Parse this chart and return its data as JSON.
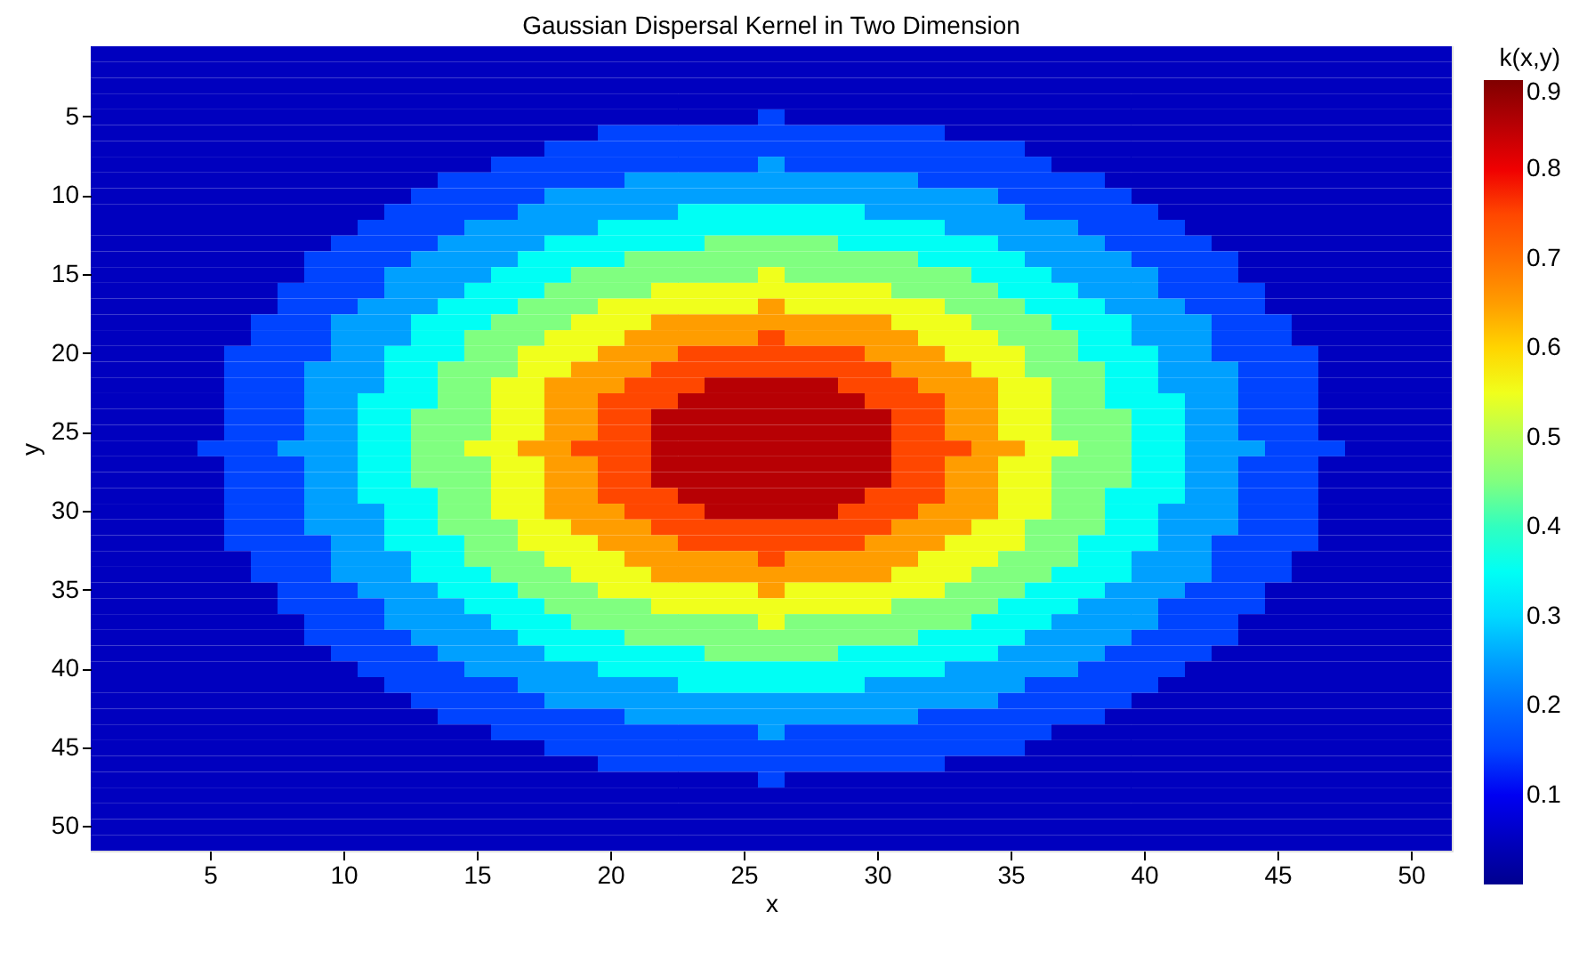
{
  "chart_data": {
    "type": "heatmap",
    "title": "Gaussian Dispersal Kernel in Two Dimension",
    "xlabel": "x",
    "ylabel": "y",
    "clabel": "k(x,y)",
    "categories": [
      null,
      null,
      null,
      null,
      "5",
      null,
      null,
      null,
      null,
      "10",
      null,
      null,
      null,
      null,
      "15",
      null,
      null,
      null,
      null,
      "20",
      null,
      null,
      null,
      null,
      "25",
      null,
      null,
      null,
      null,
      "30",
      null,
      null,
      null,
      null,
      "35",
      null,
      null,
      null,
      null,
      "40",
      null,
      null,
      null,
      null,
      "45",
      null,
      null,
      null,
      null,
      "50",
      null
    ],
    "y_categories": [
      null,
      null,
      null,
      null,
      "5",
      null,
      null,
      null,
      null,
      "10",
      null,
      null,
      null,
      null,
      "15",
      null,
      null,
      null,
      null,
      "20",
      null,
      null,
      null,
      null,
      "25",
      null,
      null,
      null,
      null,
      "30",
      null,
      null,
      null,
      null,
      "35",
      null,
      null,
      null,
      null,
      "40",
      null,
      null,
      null,
      null,
      "45",
      null,
      null,
      null,
      null,
      "50",
      null
    ],
    "clim": [
      0,
      0.9
    ],
    "cticks": [
      0.1,
      0.2,
      0.3,
      0.4,
      0.5,
      0.6,
      0.7,
      0.8,
      0.9
    ],
    "cells": [
      [
        0.05,
        0.05,
        0.05,
        0.05,
        0.05,
        0.05,
        0.05,
        0.05,
        0.05,
        0.05,
        0.05,
        0.05,
        0.05,
        0.05,
        0.05,
        0.05,
        0.05,
        0.05,
        0.05,
        0.05,
        0.05,
        0.05,
        0.05,
        0.05,
        0.05,
        0.05,
        0.05,
        0.05,
        0.05,
        0.05,
        0.05,
        0.05,
        0.05,
        0.05,
        0.05,
        0.05,
        0.05,
        0.05,
        0.05,
        0.05,
        0.05,
        0.05,
        0.05,
        0.05,
        0.05,
        0.05,
        0.05,
        0.05,
        0.05,
        0.05,
        0.05
      ],
      [
        0.05,
        0.05,
        0.05,
        0.05,
        0.05,
        0.05,
        0.05,
        0.05,
        0.05,
        0.05,
        0.05,
        0.05,
        0.05,
        0.05,
        0.05,
        0.05,
        0.05,
        0.05,
        0.05,
        0.05,
        0.05,
        0.05,
        0.05,
        0.05,
        0.05,
        0.05,
        0.05,
        0.05,
        0.05,
        0.05,
        0.05,
        0.05,
        0.05,
        0.05,
        0.05,
        0.05,
        0.05,
        0.05,
        0.05,
        0.05,
        0.05,
        0.05,
        0.05,
        0.05,
        0.05,
        0.05,
        0.05,
        0.05,
        0.05,
        0.05,
        0.05
      ],
      [
        0.05,
        0.05,
        0.05,
        0.05,
        0.05,
        0.05,
        0.05,
        0.05,
        0.05,
        0.05,
        0.05,
        0.05,
        0.05,
        0.05,
        0.05,
        0.05,
        0.05,
        0.05,
        0.05,
        0.05,
        0.05,
        0.05,
        0.05,
        0.05,
        0.05,
        0.05,
        0.05,
        0.05,
        0.05,
        0.05,
        0.05,
        0.05,
        0.05,
        0.05,
        0.05,
        0.05,
        0.05,
        0.05,
        0.05,
        0.05,
        0.05,
        0.05,
        0.05,
        0.05,
        0.05,
        0.05,
        0.05,
        0.05,
        0.05,
        0.05,
        0.05
      ],
      [
        0.05,
        0.05,
        0.05,
        0.05,
        0.05,
        0.05,
        0.05,
        0.05,
        0.05,
        0.05,
        0.05,
        0.05,
        0.05,
        0.05,
        0.05,
        0.05,
        0.05,
        0.05,
        0.05,
        0.05,
        0.05,
        0.05,
        0.05,
        0.05,
        0.05,
        0.05,
        0.05,
        0.05,
        0.05,
        0.05,
        0.05,
        0.05,
        0.05,
        0.05,
        0.05,
        0.05,
        0.05,
        0.05,
        0.05,
        0.05,
        0.05,
        0.05,
        0.05,
        0.05,
        0.05,
        0.05,
        0.05,
        0.05,
        0.05,
        0.05,
        0.05
      ],
      [
        0.05,
        0.05,
        0.05,
        0.05,
        0.05,
        0.05,
        0.05,
        0.05,
        0.05,
        0.05,
        0.05,
        0.05,
        0.05,
        0.05,
        0.05,
        0.05,
        0.05,
        0.05,
        0.05,
        0.05,
        0.05,
        0.05,
        0.05,
        0.05,
        0.05,
        0.15,
        0.05,
        0.05,
        0.05,
        0.05,
        0.05,
        0.05,
        0.05,
        0.05,
        0.05,
        0.05,
        0.05,
        0.05,
        0.05,
        0.05,
        0.05,
        0.05,
        0.05,
        0.05,
        0.05,
        0.05,
        0.05,
        0.05,
        0.05,
        0.05,
        0.05
      ],
      [
        0.05,
        0.05,
        0.05,
        0.05,
        0.05,
        0.05,
        0.05,
        0.05,
        0.05,
        0.05,
        0.05,
        0.05,
        0.05,
        0.05,
        0.05,
        0.05,
        0.05,
        0.05,
        0.05,
        0.15,
        0.15,
        0.15,
        0.15,
        0.15,
        0.15,
        0.15,
        0.15,
        0.15,
        0.15,
        0.15,
        0.15,
        0.15,
        0.05,
        0.05,
        0.05,
        0.05,
        0.05,
        0.05,
        0.05,
        0.05,
        0.05,
        0.05,
        0.05,
        0.05,
        0.05,
        0.05,
        0.05,
        0.05,
        0.05,
        0.05,
        0.05
      ],
      [
        0.05,
        0.05,
        0.05,
        0.05,
        0.05,
        0.05,
        0.05,
        0.05,
        0.05,
        0.05,
        0.05,
        0.05,
        0.05,
        0.05,
        0.05,
        0.05,
        0.05,
        0.15,
        0.15,
        0.15,
        0.15,
        0.15,
        0.15,
        0.15,
        0.15,
        0.15,
        0.15,
        0.15,
        0.15,
        0.15,
        0.15,
        0.15,
        0.15,
        0.15,
        0.15,
        0.05,
        0.05,
        0.05,
        0.05,
        0.05,
        0.05,
        0.05,
        0.05,
        0.05,
        0.05,
        0.05,
        0.05,
        0.05,
        0.05,
        0.05,
        0.05
      ],
      [
        0.05,
        0.05,
        0.05,
        0.05,
        0.05,
        0.05,
        0.05,
        0.05,
        0.05,
        0.05,
        0.05,
        0.05,
        0.05,
        0.05,
        0.05,
        0.15,
        0.15,
        0.15,
        0.15,
        0.15,
        0.15,
        0.15,
        0.15,
        0.15,
        0.15,
        0.25,
        0.15,
        0.15,
        0.15,
        0.15,
        0.15,
        0.15,
        0.15,
        0.15,
        0.15,
        0.15,
        0.05,
        0.05,
        0.05,
        0.05,
        0.05,
        0.05,
        0.05,
        0.05,
        0.05,
        0.05,
        0.05,
        0.05,
        0.05,
        0.05,
        0.05
      ],
      [
        0.05,
        0.05,
        0.05,
        0.05,
        0.05,
        0.05,
        0.05,
        0.05,
        0.05,
        0.05,
        0.05,
        0.05,
        0.05,
        0.15,
        0.15,
        0.15,
        0.15,
        0.15,
        0.15,
        0.15,
        0.25,
        0.25,
        0.25,
        0.25,
        0.25,
        0.25,
        0.25,
        0.25,
        0.25,
        0.25,
        0.25,
        0.15,
        0.15,
        0.15,
        0.15,
        0.15,
        0.15,
        0.15,
        0.05,
        0.05,
        0.05,
        0.05,
        0.05,
        0.05,
        0.05,
        0.05,
        0.05,
        0.05,
        0.05,
        0.05,
        0.05
      ],
      [
        0.05,
        0.05,
        0.05,
        0.05,
        0.05,
        0.05,
        0.05,
        0.05,
        0.05,
        0.05,
        0.05,
        0.05,
        0.15,
        0.15,
        0.15,
        0.15,
        0.15,
        0.25,
        0.25,
        0.25,
        0.25,
        0.25,
        0.25,
        0.25,
        0.25,
        0.25,
        0.25,
        0.25,
        0.25,
        0.25,
        0.25,
        0.25,
        0.25,
        0.25,
        0.15,
        0.15,
        0.15,
        0.15,
        0.15,
        0.05,
        0.05,
        0.05,
        0.05,
        0.05,
        0.05,
        0.05,
        0.05,
        0.05,
        0.05,
        0.05,
        0.05
      ],
      [
        0.05,
        0.05,
        0.05,
        0.05,
        0.05,
        0.05,
        0.05,
        0.05,
        0.05,
        0.05,
        0.05,
        0.15,
        0.15,
        0.15,
        0.15,
        0.15,
        0.25,
        0.25,
        0.25,
        0.25,
        0.25,
        0.25,
        0.35,
        0.35,
        0.35,
        0.35,
        0.35,
        0.35,
        0.35,
        0.25,
        0.25,
        0.25,
        0.25,
        0.25,
        0.25,
        0.15,
        0.15,
        0.15,
        0.15,
        0.15,
        0.05,
        0.05,
        0.05,
        0.05,
        0.05,
        0.05,
        0.05,
        0.05,
        0.05,
        0.05,
        0.05
      ],
      [
        0.05,
        0.05,
        0.05,
        0.05,
        0.05,
        0.05,
        0.05,
        0.05,
        0.05,
        0.05,
        0.15,
        0.15,
        0.15,
        0.15,
        0.25,
        0.25,
        0.25,
        0.25,
        0.25,
        0.35,
        0.35,
        0.35,
        0.35,
        0.35,
        0.35,
        0.35,
        0.35,
        0.35,
        0.35,
        0.35,
        0.35,
        0.35,
        0.25,
        0.25,
        0.25,
        0.25,
        0.25,
        0.15,
        0.15,
        0.15,
        0.15,
        0.05,
        0.05,
        0.05,
        0.05,
        0.05,
        0.05,
        0.05,
        0.05,
        0.05,
        0.05
      ],
      [
        0.05,
        0.05,
        0.05,
        0.05,
        0.05,
        0.05,
        0.05,
        0.05,
        0.05,
        0.15,
        0.15,
        0.15,
        0.15,
        0.25,
        0.25,
        0.25,
        0.25,
        0.35,
        0.35,
        0.35,
        0.35,
        0.35,
        0.35,
        0.45,
        0.45,
        0.45,
        0.45,
        0.45,
        0.35,
        0.35,
        0.35,
        0.35,
        0.35,
        0.35,
        0.25,
        0.25,
        0.25,
        0.25,
        0.15,
        0.15,
        0.15,
        0.15,
        0.05,
        0.05,
        0.05,
        0.05,
        0.05,
        0.05,
        0.05,
        0.05,
        0.05
      ],
      [
        0.05,
        0.05,
        0.05,
        0.05,
        0.05,
        0.05,
        0.05,
        0.05,
        0.15,
        0.15,
        0.15,
        0.15,
        0.25,
        0.25,
        0.25,
        0.25,
        0.35,
        0.35,
        0.35,
        0.35,
        0.45,
        0.45,
        0.45,
        0.45,
        0.45,
        0.45,
        0.45,
        0.45,
        0.45,
        0.45,
        0.45,
        0.35,
        0.35,
        0.35,
        0.35,
        0.25,
        0.25,
        0.25,
        0.25,
        0.15,
        0.15,
        0.15,
        0.15,
        0.05,
        0.05,
        0.05,
        0.05,
        0.05,
        0.05,
        0.05,
        0.05
      ],
      [
        0.05,
        0.05,
        0.05,
        0.05,
        0.05,
        0.05,
        0.05,
        0.05,
        0.15,
        0.15,
        0.15,
        0.25,
        0.25,
        0.25,
        0.25,
        0.35,
        0.35,
        0.35,
        0.45,
        0.45,
        0.45,
        0.45,
        0.45,
        0.45,
        0.45,
        0.55,
        0.45,
        0.45,
        0.45,
        0.45,
        0.45,
        0.45,
        0.45,
        0.35,
        0.35,
        0.35,
        0.25,
        0.25,
        0.25,
        0.25,
        0.15,
        0.15,
        0.15,
        0.05,
        0.05,
        0.05,
        0.05,
        0.05,
        0.05,
        0.05,
        0.05
      ],
      [
        0.05,
        0.05,
        0.05,
        0.05,
        0.05,
        0.05,
        0.05,
        0.15,
        0.15,
        0.15,
        0.15,
        0.25,
        0.25,
        0.25,
        0.35,
        0.35,
        0.35,
        0.45,
        0.45,
        0.45,
        0.45,
        0.55,
        0.55,
        0.55,
        0.55,
        0.55,
        0.55,
        0.55,
        0.55,
        0.55,
        0.45,
        0.45,
        0.45,
        0.45,
        0.35,
        0.35,
        0.35,
        0.25,
        0.25,
        0.25,
        0.15,
        0.15,
        0.15,
        0.15,
        0.05,
        0.05,
        0.05,
        0.05,
        0.05,
        0.05,
        0.05
      ],
      [
        0.05,
        0.05,
        0.05,
        0.05,
        0.05,
        0.05,
        0.05,
        0.15,
        0.15,
        0.15,
        0.25,
        0.25,
        0.25,
        0.35,
        0.35,
        0.35,
        0.45,
        0.45,
        0.45,
        0.55,
        0.55,
        0.55,
        0.55,
        0.55,
        0.55,
        0.65,
        0.55,
        0.55,
        0.55,
        0.55,
        0.55,
        0.55,
        0.45,
        0.45,
        0.45,
        0.35,
        0.35,
        0.35,
        0.25,
        0.25,
        0.25,
        0.15,
        0.15,
        0.15,
        0.05,
        0.05,
        0.05,
        0.05,
        0.05,
        0.05,
        0.05
      ],
      [
        0.05,
        0.05,
        0.05,
        0.05,
        0.05,
        0.05,
        0.15,
        0.15,
        0.15,
        0.25,
        0.25,
        0.25,
        0.35,
        0.35,
        0.35,
        0.45,
        0.45,
        0.45,
        0.55,
        0.55,
        0.55,
        0.65,
        0.65,
        0.65,
        0.65,
        0.65,
        0.65,
        0.65,
        0.65,
        0.65,
        0.55,
        0.55,
        0.55,
        0.45,
        0.45,
        0.45,
        0.35,
        0.35,
        0.35,
        0.25,
        0.25,
        0.25,
        0.15,
        0.15,
        0.15,
        0.05,
        0.05,
        0.05,
        0.05,
        0.05,
        0.05
      ],
      [
        0.05,
        0.05,
        0.05,
        0.05,
        0.05,
        0.05,
        0.15,
        0.15,
        0.15,
        0.25,
        0.25,
        0.25,
        0.35,
        0.35,
        0.45,
        0.45,
        0.45,
        0.55,
        0.55,
        0.55,
        0.65,
        0.65,
        0.65,
        0.65,
        0.65,
        0.75,
        0.65,
        0.65,
        0.65,
        0.65,
        0.65,
        0.55,
        0.55,
        0.55,
        0.45,
        0.45,
        0.45,
        0.35,
        0.35,
        0.25,
        0.25,
        0.25,
        0.15,
        0.15,
        0.15,
        0.05,
        0.05,
        0.05,
        0.05,
        0.05,
        0.05
      ],
      [
        0.05,
        0.05,
        0.05,
        0.05,
        0.05,
        0.15,
        0.15,
        0.15,
        0.15,
        0.25,
        0.25,
        0.35,
        0.35,
        0.35,
        0.45,
        0.45,
        0.55,
        0.55,
        0.55,
        0.65,
        0.65,
        0.65,
        0.75,
        0.75,
        0.75,
        0.75,
        0.75,
        0.75,
        0.75,
        0.65,
        0.65,
        0.65,
        0.55,
        0.55,
        0.55,
        0.45,
        0.45,
        0.35,
        0.35,
        0.35,
        0.25,
        0.25,
        0.15,
        0.15,
        0.15,
        0.15,
        0.05,
        0.05,
        0.05,
        0.05,
        0.05
      ],
      [
        0.05,
        0.05,
        0.05,
        0.05,
        0.05,
        0.15,
        0.15,
        0.15,
        0.25,
        0.25,
        0.25,
        0.35,
        0.35,
        0.45,
        0.45,
        0.45,
        0.55,
        0.55,
        0.65,
        0.65,
        0.65,
        0.75,
        0.75,
        0.75,
        0.75,
        0.75,
        0.75,
        0.75,
        0.75,
        0.75,
        0.65,
        0.65,
        0.65,
        0.55,
        0.55,
        0.45,
        0.45,
        0.45,
        0.35,
        0.35,
        0.25,
        0.25,
        0.25,
        0.15,
        0.15,
        0.15,
        0.05,
        0.05,
        0.05,
        0.05,
        0.05
      ],
      [
        0.05,
        0.05,
        0.05,
        0.05,
        0.05,
        0.15,
        0.15,
        0.15,
        0.25,
        0.25,
        0.25,
        0.35,
        0.35,
        0.45,
        0.45,
        0.55,
        0.55,
        0.65,
        0.65,
        0.65,
        0.75,
        0.75,
        0.75,
        0.85,
        0.85,
        0.85,
        0.85,
        0.85,
        0.75,
        0.75,
        0.75,
        0.65,
        0.65,
        0.65,
        0.55,
        0.55,
        0.45,
        0.45,
        0.35,
        0.35,
        0.25,
        0.25,
        0.25,
        0.15,
        0.15,
        0.15,
        0.05,
        0.05,
        0.05,
        0.05,
        0.05
      ],
      [
        0.05,
        0.05,
        0.05,
        0.05,
        0.05,
        0.15,
        0.15,
        0.15,
        0.25,
        0.25,
        0.35,
        0.35,
        0.35,
        0.45,
        0.45,
        0.55,
        0.55,
        0.65,
        0.65,
        0.75,
        0.75,
        0.75,
        0.85,
        0.85,
        0.85,
        0.85,
        0.85,
        0.85,
        0.85,
        0.75,
        0.75,
        0.75,
        0.65,
        0.65,
        0.55,
        0.55,
        0.45,
        0.45,
        0.35,
        0.35,
        0.35,
        0.25,
        0.25,
        0.15,
        0.15,
        0.15,
        0.05,
        0.05,
        0.05,
        0.05,
        0.05
      ],
      [
        0.05,
        0.05,
        0.05,
        0.05,
        0.05,
        0.15,
        0.15,
        0.15,
        0.25,
        0.25,
        0.35,
        0.35,
        0.45,
        0.45,
        0.45,
        0.55,
        0.55,
        0.65,
        0.65,
        0.75,
        0.75,
        0.85,
        0.85,
        0.85,
        0.85,
        0.85,
        0.85,
        0.85,
        0.85,
        0.85,
        0.75,
        0.75,
        0.65,
        0.65,
        0.55,
        0.55,
        0.45,
        0.45,
        0.45,
        0.35,
        0.35,
        0.25,
        0.25,
        0.15,
        0.15,
        0.15,
        0.05,
        0.05,
        0.05,
        0.05,
        0.05
      ],
      [
        0.05,
        0.05,
        0.05,
        0.05,
        0.05,
        0.15,
        0.15,
        0.15,
        0.25,
        0.25,
        0.35,
        0.35,
        0.45,
        0.45,
        0.45,
        0.55,
        0.55,
        0.65,
        0.65,
        0.75,
        0.75,
        0.85,
        0.85,
        0.85,
        0.85,
        0.85,
        0.85,
        0.85,
        0.85,
        0.85,
        0.75,
        0.75,
        0.65,
        0.65,
        0.55,
        0.55,
        0.45,
        0.45,
        0.45,
        0.35,
        0.35,
        0.25,
        0.25,
        0.15,
        0.15,
        0.15,
        0.05,
        0.05,
        0.05,
        0.05,
        0.05
      ],
      [
        0.05,
        0.05,
        0.05,
        0.05,
        0.15,
        0.15,
        0.15,
        0.25,
        0.25,
        0.25,
        0.35,
        0.35,
        0.45,
        0.45,
        0.55,
        0.55,
        0.65,
        0.65,
        0.75,
        0.75,
        0.75,
        0.85,
        0.85,
        0.85,
        0.85,
        0.85,
        0.85,
        0.85,
        0.85,
        0.85,
        0.75,
        0.75,
        0.75,
        0.65,
        0.65,
        0.55,
        0.55,
        0.45,
        0.45,
        0.35,
        0.35,
        0.25,
        0.25,
        0.25,
        0.15,
        0.15,
        0.15,
        0.05,
        0.05,
        0.05,
        0.05
      ],
      [
        0.05,
        0.05,
        0.05,
        0.05,
        0.05,
        0.15,
        0.15,
        0.15,
        0.25,
        0.25,
        0.35,
        0.35,
        0.45,
        0.45,
        0.45,
        0.55,
        0.55,
        0.65,
        0.65,
        0.75,
        0.75,
        0.85,
        0.85,
        0.85,
        0.85,
        0.85,
        0.85,
        0.85,
        0.85,
        0.85,
        0.75,
        0.75,
        0.65,
        0.65,
        0.55,
        0.55,
        0.45,
        0.45,
        0.45,
        0.35,
        0.35,
        0.25,
        0.25,
        0.15,
        0.15,
        0.15,
        0.05,
        0.05,
        0.05,
        0.05,
        0.05
      ],
      [
        0.05,
        0.05,
        0.05,
        0.05,
        0.05,
        0.15,
        0.15,
        0.15,
        0.25,
        0.25,
        0.35,
        0.35,
        0.45,
        0.45,
        0.45,
        0.55,
        0.55,
        0.65,
        0.65,
        0.75,
        0.75,
        0.85,
        0.85,
        0.85,
        0.85,
        0.85,
        0.85,
        0.85,
        0.85,
        0.85,
        0.75,
        0.75,
        0.65,
        0.65,
        0.55,
        0.55,
        0.45,
        0.45,
        0.45,
        0.35,
        0.35,
        0.25,
        0.25,
        0.15,
        0.15,
        0.15,
        0.05,
        0.05,
        0.05,
        0.05,
        0.05
      ],
      [
        0.05,
        0.05,
        0.05,
        0.05,
        0.05,
        0.15,
        0.15,
        0.15,
        0.25,
        0.25,
        0.35,
        0.35,
        0.35,
        0.45,
        0.45,
        0.55,
        0.55,
        0.65,
        0.65,
        0.75,
        0.75,
        0.75,
        0.85,
        0.85,
        0.85,
        0.85,
        0.85,
        0.85,
        0.85,
        0.75,
        0.75,
        0.75,
        0.65,
        0.65,
        0.55,
        0.55,
        0.45,
        0.45,
        0.35,
        0.35,
        0.35,
        0.25,
        0.25,
        0.15,
        0.15,
        0.15,
        0.05,
        0.05,
        0.05,
        0.05,
        0.05
      ],
      [
        0.05,
        0.05,
        0.05,
        0.05,
        0.05,
        0.15,
        0.15,
        0.15,
        0.25,
        0.25,
        0.25,
        0.35,
        0.35,
        0.45,
        0.45,
        0.55,
        0.55,
        0.65,
        0.65,
        0.65,
        0.75,
        0.75,
        0.75,
        0.85,
        0.85,
        0.85,
        0.85,
        0.85,
        0.75,
        0.75,
        0.75,
        0.65,
        0.65,
        0.65,
        0.55,
        0.55,
        0.45,
        0.45,
        0.35,
        0.35,
        0.25,
        0.25,
        0.25,
        0.15,
        0.15,
        0.15,
        0.05,
        0.05,
        0.05,
        0.05,
        0.05
      ],
      [
        0.05,
        0.05,
        0.05,
        0.05,
        0.05,
        0.15,
        0.15,
        0.15,
        0.25,
        0.25,
        0.25,
        0.35,
        0.35,
        0.45,
        0.45,
        0.45,
        0.55,
        0.55,
        0.65,
        0.65,
        0.65,
        0.75,
        0.75,
        0.75,
        0.75,
        0.75,
        0.75,
        0.75,
        0.75,
        0.75,
        0.65,
        0.65,
        0.65,
        0.55,
        0.55,
        0.45,
        0.45,
        0.45,
        0.35,
        0.35,
        0.25,
        0.25,
        0.25,
        0.15,
        0.15,
        0.15,
        0.05,
        0.05,
        0.05,
        0.05,
        0.05
      ],
      [
        0.05,
        0.05,
        0.05,
        0.05,
        0.05,
        0.15,
        0.15,
        0.15,
        0.15,
        0.25,
        0.25,
        0.35,
        0.35,
        0.35,
        0.45,
        0.45,
        0.55,
        0.55,
        0.55,
        0.65,
        0.65,
        0.65,
        0.75,
        0.75,
        0.75,
        0.75,
        0.75,
        0.75,
        0.75,
        0.65,
        0.65,
        0.65,
        0.55,
        0.55,
        0.55,
        0.45,
        0.45,
        0.35,
        0.35,
        0.35,
        0.25,
        0.25,
        0.15,
        0.15,
        0.15,
        0.15,
        0.05,
        0.05,
        0.05,
        0.05,
        0.05
      ],
      [
        0.05,
        0.05,
        0.05,
        0.05,
        0.05,
        0.05,
        0.15,
        0.15,
        0.15,
        0.25,
        0.25,
        0.25,
        0.35,
        0.35,
        0.45,
        0.45,
        0.45,
        0.55,
        0.55,
        0.55,
        0.65,
        0.65,
        0.65,
        0.65,
        0.65,
        0.75,
        0.65,
        0.65,
        0.65,
        0.65,
        0.65,
        0.55,
        0.55,
        0.55,
        0.45,
        0.45,
        0.45,
        0.35,
        0.35,
        0.25,
        0.25,
        0.25,
        0.15,
        0.15,
        0.15,
        0.05,
        0.05,
        0.05,
        0.05,
        0.05,
        0.05
      ],
      [
        0.05,
        0.05,
        0.05,
        0.05,
        0.05,
        0.05,
        0.15,
        0.15,
        0.15,
        0.25,
        0.25,
        0.25,
        0.35,
        0.35,
        0.35,
        0.45,
        0.45,
        0.45,
        0.55,
        0.55,
        0.55,
        0.65,
        0.65,
        0.65,
        0.65,
        0.65,
        0.65,
        0.65,
        0.65,
        0.65,
        0.55,
        0.55,
        0.55,
        0.45,
        0.45,
        0.45,
        0.35,
        0.35,
        0.35,
        0.25,
        0.25,
        0.25,
        0.15,
        0.15,
        0.15,
        0.05,
        0.05,
        0.05,
        0.05,
        0.05,
        0.05
      ],
      [
        0.05,
        0.05,
        0.05,
        0.05,
        0.05,
        0.05,
        0.05,
        0.15,
        0.15,
        0.15,
        0.25,
        0.25,
        0.25,
        0.35,
        0.35,
        0.35,
        0.45,
        0.45,
        0.45,
        0.55,
        0.55,
        0.55,
        0.55,
        0.55,
        0.55,
        0.65,
        0.55,
        0.55,
        0.55,
        0.55,
        0.55,
        0.55,
        0.45,
        0.45,
        0.45,
        0.35,
        0.35,
        0.35,
        0.25,
        0.25,
        0.25,
        0.15,
        0.15,
        0.15,
        0.05,
        0.05,
        0.05,
        0.05,
        0.05,
        0.05,
        0.05
      ],
      [
        0.05,
        0.05,
        0.05,
        0.05,
        0.05,
        0.05,
        0.05,
        0.15,
        0.15,
        0.15,
        0.15,
        0.25,
        0.25,
        0.25,
        0.35,
        0.35,
        0.35,
        0.45,
        0.45,
        0.45,
        0.45,
        0.55,
        0.55,
        0.55,
        0.55,
        0.55,
        0.55,
        0.55,
        0.55,
        0.55,
        0.45,
        0.45,
        0.45,
        0.45,
        0.35,
        0.35,
        0.35,
        0.25,
        0.25,
        0.25,
        0.15,
        0.15,
        0.15,
        0.15,
        0.05,
        0.05,
        0.05,
        0.05,
        0.05,
        0.05,
        0.05
      ],
      [
        0.05,
        0.05,
        0.05,
        0.05,
        0.05,
        0.05,
        0.05,
        0.05,
        0.15,
        0.15,
        0.15,
        0.25,
        0.25,
        0.25,
        0.25,
        0.35,
        0.35,
        0.35,
        0.45,
        0.45,
        0.45,
        0.45,
        0.45,
        0.45,
        0.45,
        0.55,
        0.45,
        0.45,
        0.45,
        0.45,
        0.45,
        0.45,
        0.45,
        0.35,
        0.35,
        0.35,
        0.25,
        0.25,
        0.25,
        0.25,
        0.15,
        0.15,
        0.15,
        0.05,
        0.05,
        0.05,
        0.05,
        0.05,
        0.05,
        0.05,
        0.05
      ],
      [
        0.05,
        0.05,
        0.05,
        0.05,
        0.05,
        0.05,
        0.05,
        0.05,
        0.15,
        0.15,
        0.15,
        0.15,
        0.25,
        0.25,
        0.25,
        0.25,
        0.35,
        0.35,
        0.35,
        0.35,
        0.45,
        0.45,
        0.45,
        0.45,
        0.45,
        0.45,
        0.45,
        0.45,
        0.45,
        0.45,
        0.45,
        0.35,
        0.35,
        0.35,
        0.35,
        0.25,
        0.25,
        0.25,
        0.25,
        0.15,
        0.15,
        0.15,
        0.15,
        0.05,
        0.05,
        0.05,
        0.05,
        0.05,
        0.05,
        0.05,
        0.05
      ],
      [
        0.05,
        0.05,
        0.05,
        0.05,
        0.05,
        0.05,
        0.05,
        0.05,
        0.05,
        0.15,
        0.15,
        0.15,
        0.15,
        0.25,
        0.25,
        0.25,
        0.25,
        0.35,
        0.35,
        0.35,
        0.35,
        0.35,
        0.35,
        0.45,
        0.45,
        0.45,
        0.45,
        0.45,
        0.35,
        0.35,
        0.35,
        0.35,
        0.35,
        0.35,
        0.25,
        0.25,
        0.25,
        0.25,
        0.15,
        0.15,
        0.15,
        0.15,
        0.05,
        0.05,
        0.05,
        0.05,
        0.05,
        0.05,
        0.05,
        0.05,
        0.05
      ],
      [
        0.05,
        0.05,
        0.05,
        0.05,
        0.05,
        0.05,
        0.05,
        0.05,
        0.05,
        0.05,
        0.15,
        0.15,
        0.15,
        0.15,
        0.25,
        0.25,
        0.25,
        0.25,
        0.25,
        0.35,
        0.35,
        0.35,
        0.35,
        0.35,
        0.35,
        0.35,
        0.35,
        0.35,
        0.35,
        0.35,
        0.35,
        0.35,
        0.25,
        0.25,
        0.25,
        0.25,
        0.25,
        0.15,
        0.15,
        0.15,
        0.15,
        0.05,
        0.05,
        0.05,
        0.05,
        0.05,
        0.05,
        0.05,
        0.05,
        0.05,
        0.05
      ],
      [
        0.05,
        0.05,
        0.05,
        0.05,
        0.05,
        0.05,
        0.05,
        0.05,
        0.05,
        0.05,
        0.05,
        0.15,
        0.15,
        0.15,
        0.15,
        0.15,
        0.25,
        0.25,
        0.25,
        0.25,
        0.25,
        0.25,
        0.35,
        0.35,
        0.35,
        0.35,
        0.35,
        0.35,
        0.35,
        0.25,
        0.25,
        0.25,
        0.25,
        0.25,
        0.25,
        0.15,
        0.15,
        0.15,
        0.15,
        0.15,
        0.05,
        0.05,
        0.05,
        0.05,
        0.05,
        0.05,
        0.05,
        0.05,
        0.05,
        0.05,
        0.05
      ],
      [
        0.05,
        0.05,
        0.05,
        0.05,
        0.05,
        0.05,
        0.05,
        0.05,
        0.05,
        0.05,
        0.05,
        0.05,
        0.15,
        0.15,
        0.15,
        0.15,
        0.15,
        0.25,
        0.25,
        0.25,
        0.25,
        0.25,
        0.25,
        0.25,
        0.25,
        0.25,
        0.25,
        0.25,
        0.25,
        0.25,
        0.25,
        0.25,
        0.25,
        0.25,
        0.15,
        0.15,
        0.15,
        0.15,
        0.15,
        0.05,
        0.05,
        0.05,
        0.05,
        0.05,
        0.05,
        0.05,
        0.05,
        0.05,
        0.05,
        0.05,
        0.05
      ],
      [
        0.05,
        0.05,
        0.05,
        0.05,
        0.05,
        0.05,
        0.05,
        0.05,
        0.05,
        0.05,
        0.05,
        0.05,
        0.05,
        0.15,
        0.15,
        0.15,
        0.15,
        0.15,
        0.15,
        0.15,
        0.25,
        0.25,
        0.25,
        0.25,
        0.25,
        0.25,
        0.25,
        0.25,
        0.25,
        0.25,
        0.25,
        0.15,
        0.15,
        0.15,
        0.15,
        0.15,
        0.15,
        0.15,
        0.05,
        0.05,
        0.05,
        0.05,
        0.05,
        0.05,
        0.05,
        0.05,
        0.05,
        0.05,
        0.05,
        0.05,
        0.05
      ],
      [
        0.05,
        0.05,
        0.05,
        0.05,
        0.05,
        0.05,
        0.05,
        0.05,
        0.05,
        0.05,
        0.05,
        0.05,
        0.05,
        0.05,
        0.05,
        0.15,
        0.15,
        0.15,
        0.15,
        0.15,
        0.15,
        0.15,
        0.15,
        0.15,
        0.15,
        0.25,
        0.15,
        0.15,
        0.15,
        0.15,
        0.15,
        0.15,
        0.15,
        0.15,
        0.15,
        0.15,
        0.05,
        0.05,
        0.05,
        0.05,
        0.05,
        0.05,
        0.05,
        0.05,
        0.05,
        0.05,
        0.05,
        0.05,
        0.05,
        0.05,
        0.05
      ],
      [
        0.05,
        0.05,
        0.05,
        0.05,
        0.05,
        0.05,
        0.05,
        0.05,
        0.05,
        0.05,
        0.05,
        0.05,
        0.05,
        0.05,
        0.05,
        0.05,
        0.05,
        0.15,
        0.15,
        0.15,
        0.15,
        0.15,
        0.15,
        0.15,
        0.15,
        0.15,
        0.15,
        0.15,
        0.15,
        0.15,
        0.15,
        0.15,
        0.15,
        0.15,
        0.15,
        0.05,
        0.05,
        0.05,
        0.05,
        0.05,
        0.05,
        0.05,
        0.05,
        0.05,
        0.05,
        0.05,
        0.05,
        0.05,
        0.05,
        0.05,
        0.05
      ],
      [
        0.05,
        0.05,
        0.05,
        0.05,
        0.05,
        0.05,
        0.05,
        0.05,
        0.05,
        0.05,
        0.05,
        0.05,
        0.05,
        0.05,
        0.05,
        0.05,
        0.05,
        0.05,
        0.05,
        0.15,
        0.15,
        0.15,
        0.15,
        0.15,
        0.15,
        0.15,
        0.15,
        0.15,
        0.15,
        0.15,
        0.15,
        0.15,
        0.05,
        0.05,
        0.05,
        0.05,
        0.05,
        0.05,
        0.05,
        0.05,
        0.05,
        0.05,
        0.05,
        0.05,
        0.05,
        0.05,
        0.05,
        0.05,
        0.05,
        0.05,
        0.05
      ],
      [
        0.05,
        0.05,
        0.05,
        0.05,
        0.05,
        0.05,
        0.05,
        0.05,
        0.05,
        0.05,
        0.05,
        0.05,
        0.05,
        0.05,
        0.05,
        0.05,
        0.05,
        0.05,
        0.05,
        0.05,
        0.05,
        0.05,
        0.05,
        0.05,
        0.05,
        0.15,
        0.05,
        0.05,
        0.05,
        0.05,
        0.05,
        0.05,
        0.05,
        0.05,
        0.05,
        0.05,
        0.05,
        0.05,
        0.05,
        0.05,
        0.05,
        0.05,
        0.05,
        0.05,
        0.05,
        0.05,
        0.05,
        0.05,
        0.05,
        0.05,
        0.05
      ],
      [
        0.05,
        0.05,
        0.05,
        0.05,
        0.05,
        0.05,
        0.05,
        0.05,
        0.05,
        0.05,
        0.05,
        0.05,
        0.05,
        0.05,
        0.05,
        0.05,
        0.05,
        0.05,
        0.05,
        0.05,
        0.05,
        0.05,
        0.05,
        0.05,
        0.05,
        0.05,
        0.05,
        0.05,
        0.05,
        0.05,
        0.05,
        0.05,
        0.05,
        0.05,
        0.05,
        0.05,
        0.05,
        0.05,
        0.05,
        0.05,
        0.05,
        0.05,
        0.05,
        0.05,
        0.05,
        0.05,
        0.05,
        0.05,
        0.05,
        0.05,
        0.05
      ],
      [
        0.05,
        0.05,
        0.05,
        0.05,
        0.05,
        0.05,
        0.05,
        0.05,
        0.05,
        0.05,
        0.05,
        0.05,
        0.05,
        0.05,
        0.05,
        0.05,
        0.05,
        0.05,
        0.05,
        0.05,
        0.05,
        0.05,
        0.05,
        0.05,
        0.05,
        0.05,
        0.05,
        0.05,
        0.05,
        0.05,
        0.05,
        0.05,
        0.05,
        0.05,
        0.05,
        0.05,
        0.05,
        0.05,
        0.05,
        0.05,
        0.05,
        0.05,
        0.05,
        0.05,
        0.05,
        0.05,
        0.05,
        0.05,
        0.05,
        0.05,
        0.05
      ],
      [
        0.05,
        0.05,
        0.05,
        0.05,
        0.05,
        0.05,
        0.05,
        0.05,
        0.05,
        0.05,
        0.05,
        0.05,
        0.05,
        0.05,
        0.05,
        0.05,
        0.05,
        0.05,
        0.05,
        0.05,
        0.05,
        0.05,
        0.05,
        0.05,
        0.05,
        0.05,
        0.05,
        0.05,
        0.05,
        0.05,
        0.05,
        0.05,
        0.05,
        0.05,
        0.05,
        0.05,
        0.05,
        0.05,
        0.05,
        0.05,
        0.05,
        0.05,
        0.05,
        0.05,
        0.05,
        0.05,
        0.05,
        0.05,
        0.05,
        0.05,
        0.05
      ],
      [
        0.05,
        0.05,
        0.05,
        0.05,
        0.05,
        0.05,
        0.05,
        0.05,
        0.05,
        0.05,
        0.05,
        0.05,
        0.05,
        0.05,
        0.05,
        0.05,
        0.05,
        0.05,
        0.05,
        0.05,
        0.05,
        0.05,
        0.05,
        0.05,
        0.05,
        0.05,
        0.05,
        0.05,
        0.05,
        0.05,
        0.05,
        0.05,
        0.05,
        0.05,
        0.05,
        0.05,
        0.05,
        0.05,
        0.05,
        0.05,
        0.05,
        0.05,
        0.05,
        0.05,
        0.05,
        0.05,
        0.05,
        0.05,
        0.05,
        0.05,
        0.05
      ]
    ]
  }
}
